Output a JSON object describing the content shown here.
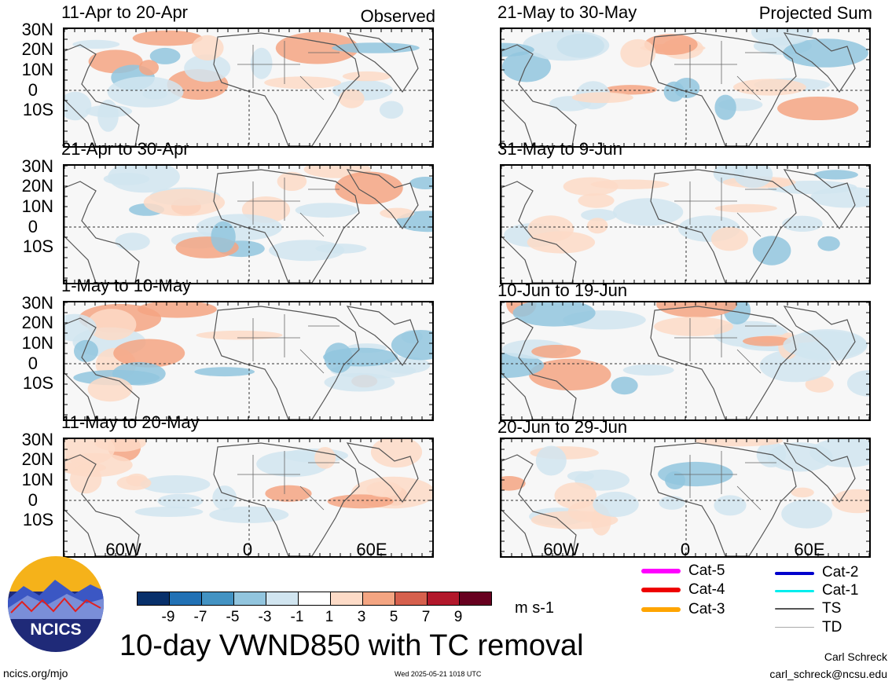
{
  "left_column_label": "Observed",
  "right_column_label": "Projected Sum",
  "panels_left": [
    {
      "title": "11-Apr to 20-Apr"
    },
    {
      "title": "21-Apr to 30-Apr"
    },
    {
      "title": "1-May to 10-May"
    },
    {
      "title": "11-May to 20-May"
    }
  ],
  "panels_right": [
    {
      "title": "21-May to 30-May"
    },
    {
      "title": "31-May to 9-Jun"
    },
    {
      "title": "10-Jun to 19-Jun"
    },
    {
      "title": "20-Jun to 29-Jun"
    }
  ],
  "lat_labels": [
    "30N",
    "20N",
    "10N",
    "0",
    "10S"
  ],
  "lon_labels": [
    "60W",
    "0",
    "60E"
  ],
  "colorbar": {
    "colors": [
      "#08306b",
      "#2171b5",
      "#4393c3",
      "#92c5de",
      "#d1e5f0",
      "#ffffff",
      "#fddbc7",
      "#f4a582",
      "#d6604d",
      "#b2182b",
      "#67001f"
    ],
    "labels": [
      "-9",
      "-7",
      "-5",
      "-3",
      "-1",
      "1",
      "3",
      "5",
      "7",
      "9"
    ],
    "units": "m s-1"
  },
  "main_title": "10-day VWND850 with TC removal",
  "legend": [
    {
      "label": "Cat-5",
      "color": "#ff00ff"
    },
    {
      "label": "Cat-4",
      "color": "#ee0000"
    },
    {
      "label": "Cat-3",
      "color": "#ffa500"
    },
    {
      "label": "Cat-2",
      "color": "#0000cc"
    },
    {
      "label": "Cat-1",
      "color": "#00eeee"
    },
    {
      "label": "TS",
      "color": "#555555"
    },
    {
      "label": "TD",
      "color": "#aaaaaa"
    }
  ],
  "logo_text": "NCICS",
  "footer": {
    "website": "ncics.org/mjo",
    "timestamp": "Wed 2025-05-21 1018 UTC",
    "author": "Carl Schreck",
    "email": "carl_schreck@ncsu.edu"
  }
}
